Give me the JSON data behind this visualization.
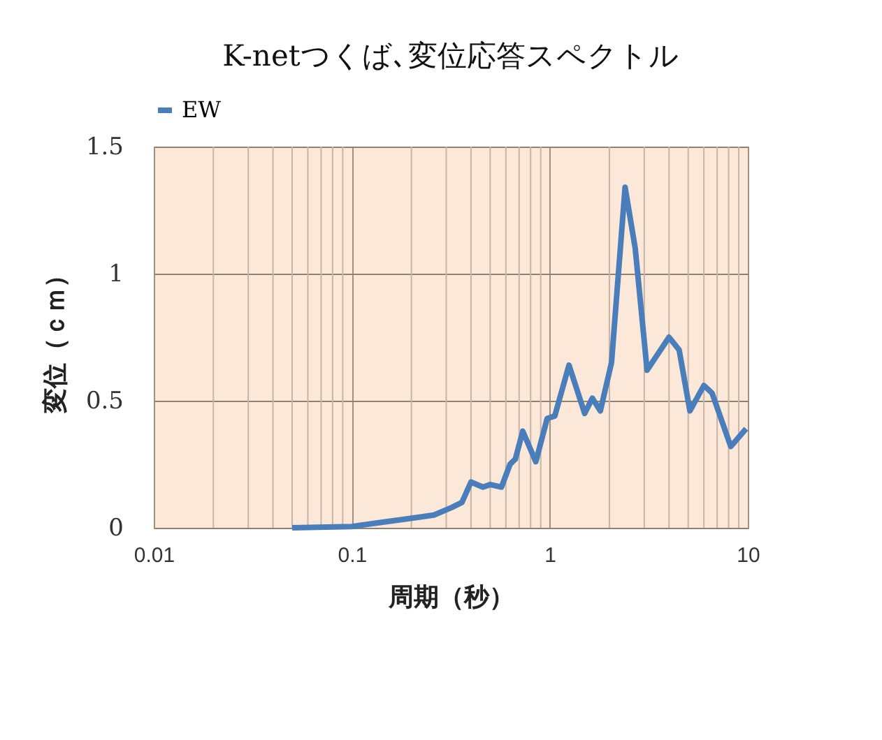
{
  "chart_data": {
    "type": "line",
    "title": "K-netつくば､変位応答スペクトル",
    "xlabel": "周期（秒）",
    "ylabel": "変位（ｃｍ）",
    "log": "x",
    "xlim": [
      0.01,
      10
    ],
    "xticks": [
      0.01,
      0.1,
      1,
      10
    ],
    "ylim": [
      0,
      1.5
    ],
    "yticks": [
      0,
      0.5,
      1,
      1.5
    ],
    "grid": true,
    "legend": "top",
    "marker": "none",
    "line_style": "solid",
    "series": [
      {
        "name": "EW",
        "color": "#4a7ebb",
        "x": [
          0.05,
          0.1,
          0.137,
          0.19,
          0.26,
          0.32,
          0.36,
          0.4,
          0.46,
          0.5,
          0.57,
          0.63,
          0.67,
          0.73,
          0.85,
          0.97,
          1.06,
          1.25,
          1.5,
          1.64,
          1.8,
          2.05,
          2.4,
          2.7,
          3.1,
          4.0,
          4.5,
          5.1,
          6.0,
          6.6,
          8.2,
          9.8
        ],
        "values": [
          0,
          0.005,
          0.02,
          0.035,
          0.05,
          0.08,
          0.1,
          0.18,
          0.16,
          0.17,
          0.16,
          0.25,
          0.27,
          0.38,
          0.26,
          0.43,
          0.44,
          0.64,
          0.45,
          0.51,
          0.46,
          0.65,
          1.34,
          1.1,
          0.62,
          0.75,
          0.7,
          0.46,
          0.56,
          0.53,
          0.32,
          0.39
        ]
      }
    ]
  }
}
